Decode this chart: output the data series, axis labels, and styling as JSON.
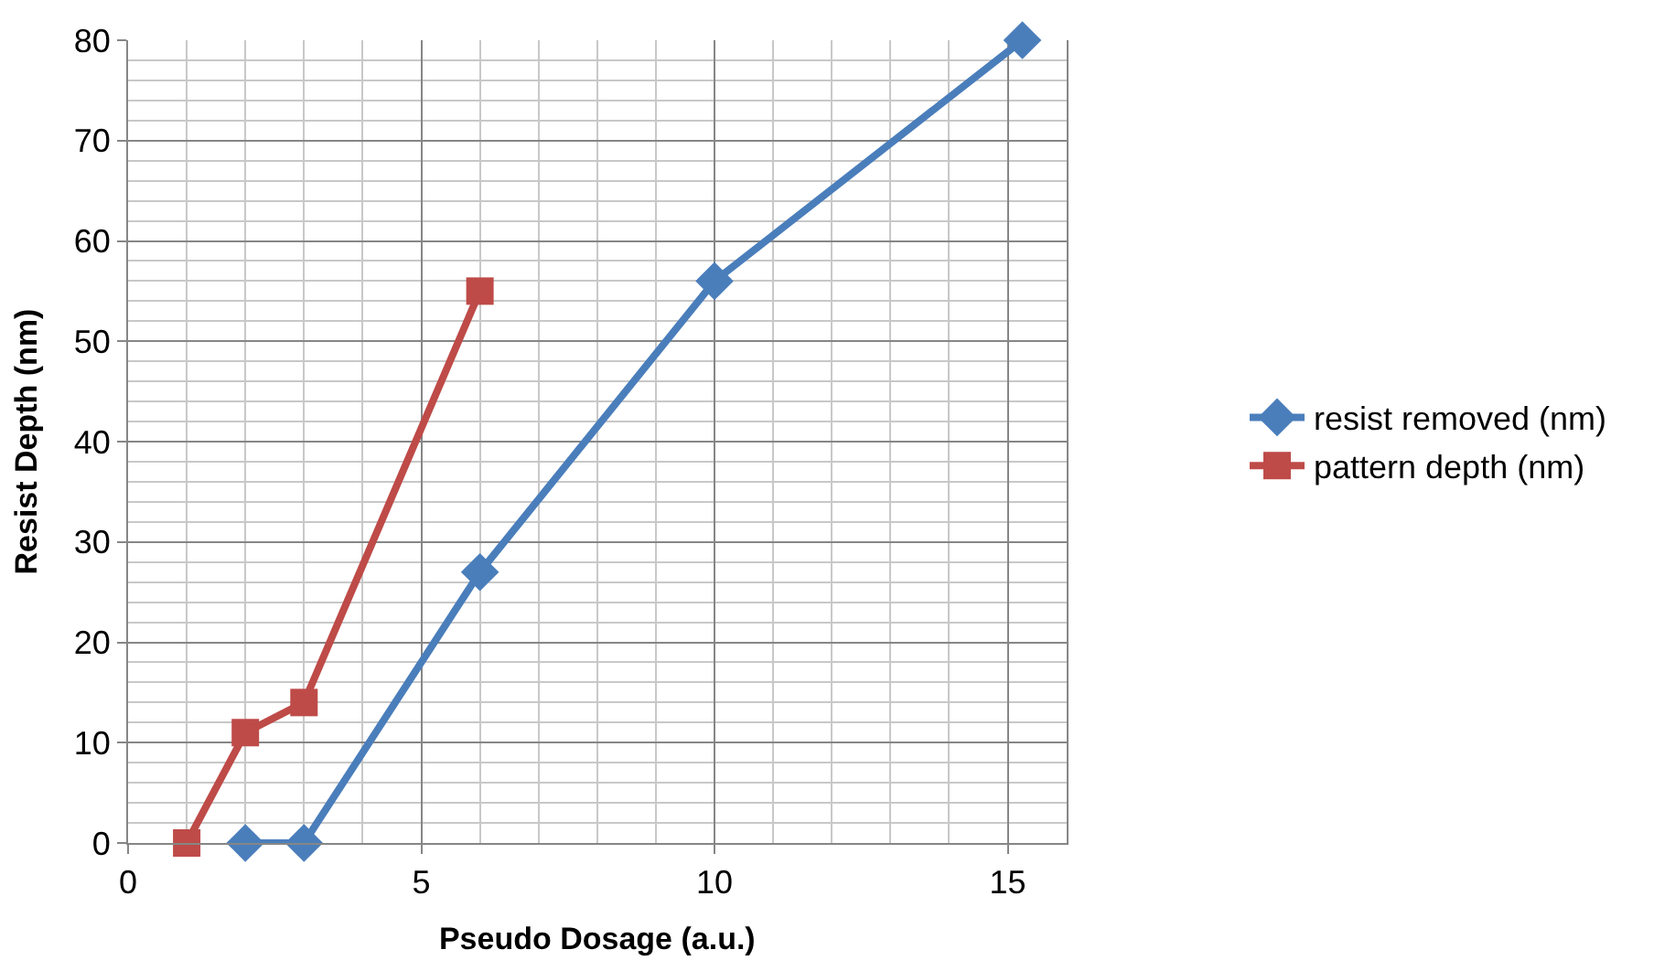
{
  "chart_data": {
    "type": "line",
    "xlabel": "Pseudo Dosage (a.u.)",
    "ylabel": "Resist Depth (nm)",
    "xlim": [
      0,
      16
    ],
    "ylim": [
      0,
      80
    ],
    "xticks": [
      0,
      {
        "value": 1,
        "label": null
      },
      {
        "value": 2,
        "label": null
      },
      {
        "value": 3,
        "label": null
      },
      {
        "value": 4,
        "label": null
      },
      5,
      {
        "value": 6,
        "label": null
      },
      {
        "value": 7,
        "label": null
      },
      {
        "value": 8,
        "label": null
      },
      {
        "value": 9,
        "label": null
      },
      10,
      {
        "value": 11,
        "label": null
      },
      {
        "value": 12,
        "label": null
      },
      {
        "value": 13,
        "label": null
      },
      {
        "value": 14,
        "label": null
      },
      15
    ],
    "yticks": [
      0,
      {
        "value": 2,
        "label": null
      },
      {
        "value": 4,
        "label": null
      },
      {
        "value": 6,
        "label": null
      },
      {
        "value": 8,
        "label": null
      },
      10,
      {
        "value": 12,
        "label": null
      },
      {
        "value": 14,
        "label": null
      },
      {
        "value": 16,
        "label": null
      },
      {
        "value": 18,
        "label": null
      },
      20,
      {
        "value": 22,
        "label": null
      },
      {
        "value": 24,
        "label": null
      },
      {
        "value": 26,
        "label": null
      },
      {
        "value": 28,
        "label": null
      },
      30,
      {
        "value": 32,
        "label": null
      },
      {
        "value": 34,
        "label": null
      },
      {
        "value": 36,
        "label": null
      },
      {
        "value": 38,
        "label": null
      },
      40,
      {
        "value": 42,
        "label": null
      },
      {
        "value": 44,
        "label": null
      },
      {
        "value": 46,
        "label": null
      },
      {
        "value": 48,
        "label": null
      },
      50,
      {
        "value": 52,
        "label": null
      },
      {
        "value": 54,
        "label": null
      },
      {
        "value": 56,
        "label": null
      },
      {
        "value": 58,
        "label": null
      },
      60,
      {
        "value": 62,
        "label": null
      },
      {
        "value": 64,
        "label": null
      },
      {
        "value": 66,
        "label": null
      },
      {
        "value": 68,
        "label": null
      },
      70,
      {
        "value": 72,
        "label": null
      },
      {
        "value": 74,
        "label": null
      },
      {
        "value": 76,
        "label": null
      },
      {
        "value": 78,
        "label": null
      },
      80
    ],
    "grid": true,
    "legend": "right",
    "line_style": "solid",
    "series": [
      {
        "name": "resist removed (nm)",
        "color": "#4a7ebb",
        "marker": "diamond",
        "x": [
          2,
          3,
          6,
          10,
          15.25
        ],
        "values": [
          0,
          0,
          27,
          56,
          80
        ]
      },
      {
        "name": "pattern depth (nm)",
        "color": "#be4b48",
        "marker": "square",
        "x": [
          1,
          2,
          3,
          6
        ],
        "values": [
          0,
          11,
          14,
          55
        ]
      }
    ]
  }
}
